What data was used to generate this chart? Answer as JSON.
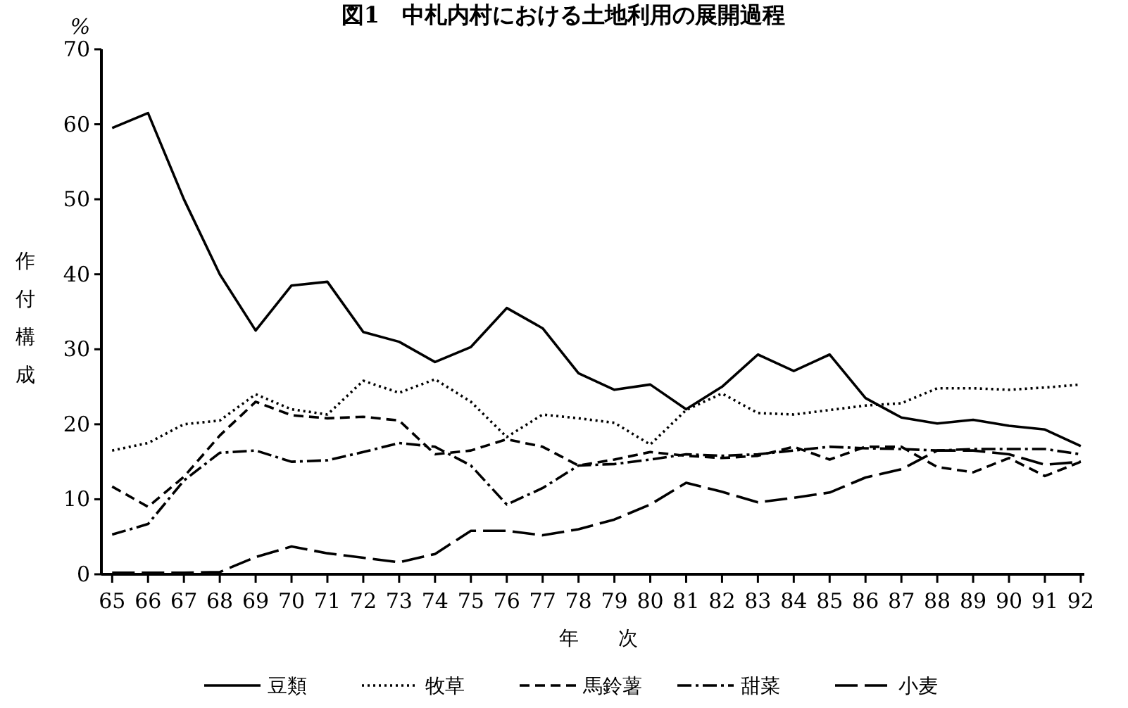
{
  "chart_data": {
    "type": "line",
    "title": "図1　中札内村における土地利用の展開過程",
    "xlabel": "年　次",
    "ylabel": "作付構成",
    "annotations": [
      "%"
    ],
    "x": [
      65,
      66,
      67,
      68,
      69,
      70,
      71,
      72,
      73,
      74,
      75,
      76,
      77,
      78,
      79,
      80,
      81,
      82,
      83,
      84,
      85,
      86,
      87,
      88,
      89,
      90,
      91,
      92
    ],
    "xlim": [
      64.7,
      92.1
    ],
    "xticks": [
      65,
      66,
      67,
      68,
      69,
      70,
      71,
      72,
      73,
      74,
      75,
      76,
      77,
      78,
      79,
      80,
      81,
      82,
      83,
      84,
      85,
      86,
      87,
      88,
      89,
      90,
      91,
      92
    ],
    "ylim": [
      0,
      70
    ],
    "yticks": [
      0,
      10,
      20,
      30,
      40,
      50,
      60,
      70
    ],
    "grid": false,
    "legend": "bottom",
    "marker": "none",
    "series": [
      {
        "name": "豆類",
        "color": "#000000",
        "line_style": "solid",
        "values": [
          59.5,
          61.5,
          50,
          40,
          32.5,
          38.5,
          39,
          32.3,
          31,
          28.3,
          30.3,
          35.5,
          32.8,
          26.8,
          24.6,
          25.3,
          22,
          25,
          29.3,
          27.1,
          29.3,
          23.5,
          20.9,
          20.1,
          20.6,
          19.8,
          19.3,
          17.1
        ]
      },
      {
        "name": "牧草",
        "color": "#000000",
        "line_style": "dotted",
        "values": [
          16.5,
          17.5,
          20,
          20.5,
          24,
          22,
          21.3,
          25.8,
          24.2,
          26,
          23,
          18.3,
          21.3,
          20.8,
          20.2,
          17.3,
          21.9,
          24.1,
          21.5,
          21.3,
          21.9,
          22.5,
          22.8,
          24.8,
          24.8,
          24.6,
          24.9,
          25.3
        ]
      },
      {
        "name": "馬鈴薯",
        "color": "#000000",
        "line_style": "dashed",
        "values": [
          11.7,
          9,
          13,
          18.5,
          23,
          21.2,
          20.8,
          21,
          20.5,
          16,
          16.5,
          18,
          17,
          14.5,
          15.3,
          16.3,
          15.8,
          15.5,
          15.8,
          17,
          15.3,
          17,
          17,
          14.3,
          13.6,
          15.5,
          13.1,
          15
        ]
      },
      {
        "name": "甜菜",
        "color": "#000000",
        "line_style": "dashdot",
        "values": [
          5.3,
          6.7,
          12.5,
          16.2,
          16.5,
          15,
          15.2,
          16.3,
          17.5,
          17,
          14.5,
          9.3,
          11.5,
          14.5,
          14.7,
          15.3,
          16,
          15.8,
          16,
          16.5,
          17,
          16.8,
          16.7,
          16.5,
          16.7,
          16.7,
          16.7,
          16
        ]
      },
      {
        "name": "小麦",
        "color": "#000000",
        "line_style": "longdash",
        "values": [
          0.2,
          0.2,
          0.2,
          0.3,
          2.3,
          3.7,
          2.8,
          2.2,
          1.6,
          2.7,
          5.8,
          5.8,
          5.2,
          6,
          7.3,
          9.3,
          12.2,
          11,
          9.6,
          10.2,
          10.9,
          12.9,
          14,
          16.5,
          16.5,
          16,
          14.6,
          15
        ]
      }
    ]
  }
}
